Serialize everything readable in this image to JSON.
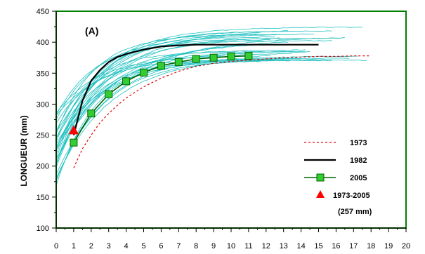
{
  "chart_data": {
    "type": "line",
    "panel_label": "(A)",
    "ylabel": "LONGUEUR   (mm)",
    "xlabel": "",
    "xlim": [
      0,
      20
    ],
    "ylim": [
      100,
      450
    ],
    "x_ticks": [
      0,
      1,
      2,
      3,
      4,
      5,
      6,
      7,
      8,
      9,
      10,
      11,
      12,
      13,
      14,
      15,
      16,
      17,
      18,
      19,
      20
    ],
    "y_ticks": [
      100,
      150,
      200,
      250,
      300,
      350,
      400,
      450
    ],
    "grid": false,
    "legend_position": "bottom-right",
    "colors": {
      "frame": "#008000",
      "individual_curves": "#20c0c0",
      "series_1973": "#e00000",
      "series_1982": "#000000",
      "series_2005_line": "#006400",
      "series_2005_marker": "#33cc33",
      "point_1973_2005": "#ff0000"
    },
    "background_curves": {
      "description_units": "mm",
      "count": 30,
      "start_x": 0,
      "end_x_range": [
        11,
        18
      ],
      "start_y_range": [
        165,
        290
      ],
      "asymptote_range": [
        370,
        425
      ]
    },
    "series": [
      {
        "name": "1973",
        "style": "dashed",
        "x": [
          1,
          1.5,
          2,
          2.5,
          3,
          3.5,
          4,
          5,
          6,
          7,
          8,
          9,
          10,
          11,
          12,
          13,
          14,
          15,
          16,
          17,
          18
        ],
        "y": [
          197,
          228,
          250,
          270,
          285,
          298,
          310,
          328,
          342,
          353,
          361,
          366,
          369,
          371,
          373,
          375,
          376,
          377,
          377,
          378,
          378
        ]
      },
      {
        "name": "1982",
        "style": "solid",
        "x": [
          1,
          1.5,
          2,
          2.5,
          3,
          3.5,
          4,
          5,
          6,
          7,
          8,
          9,
          10,
          11,
          12,
          13,
          14,
          15
        ],
        "y": [
          250,
          305,
          338,
          355,
          368,
          376,
          381,
          388,
          393,
          395,
          396,
          396,
          396,
          396,
          396,
          396,
          396,
          396
        ]
      },
      {
        "name": "2005",
        "style": "solid-marker",
        "x": [
          1,
          2,
          3,
          4,
          5,
          6,
          7,
          8,
          9,
          10,
          11
        ],
        "y": [
          238,
          285,
          316,
          337,
          351,
          362,
          368,
          373,
          375,
          377,
          378
        ]
      }
    ],
    "point": {
      "name": "1973-2005",
      "note": "(257 mm)",
      "x": 1,
      "y": 257
    }
  }
}
